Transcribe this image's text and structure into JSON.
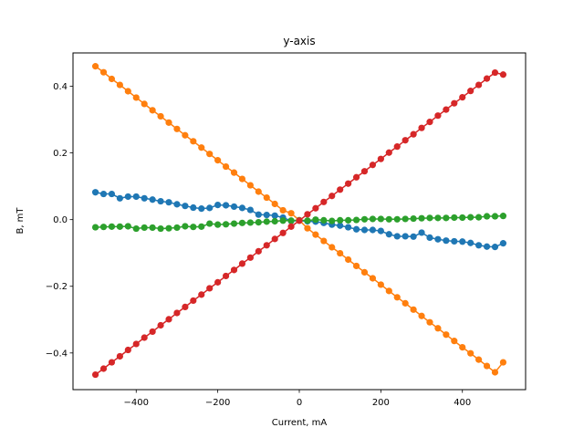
{
  "chart_data": {
    "type": "line",
    "title": "y-axis",
    "xlabel": "Current, mA",
    "ylabel": "B, mT",
    "xlim": [
      -555,
      555
    ],
    "ylim": [
      -0.51,
      0.5
    ],
    "xticks": [
      -400,
      -200,
      0,
      200,
      400
    ],
    "yticks": [
      -0.4,
      -0.2,
      0.0,
      0.2,
      0.4
    ],
    "xtick_labels": [
      "−400",
      "−200",
      "0",
      "200",
      "400"
    ],
    "ytick_labels": [
      "−0.4",
      "−0.2",
      "0.0",
      "0.2",
      "0.4"
    ],
    "grid": false,
    "legend": "none",
    "x": [
      -500,
      -480,
      -460,
      -440,
      -420,
      -400,
      -380,
      -360,
      -340,
      -320,
      -300,
      -280,
      -260,
      -240,
      -220,
      -200,
      -180,
      -160,
      -140,
      -120,
      -100,
      -80,
      -60,
      -40,
      -20,
      0,
      20,
      40,
      60,
      80,
      100,
      120,
      140,
      160,
      180,
      200,
      220,
      240,
      260,
      280,
      300,
      320,
      340,
      360,
      380,
      400,
      420,
      440,
      460,
      480,
      500
    ],
    "series": [
      {
        "color": "#1f77b4",
        "values": [
          0.082,
          0.077,
          0.077,
          0.064,
          0.069,
          0.069,
          0.064,
          0.06,
          0.055,
          0.052,
          0.046,
          0.041,
          0.036,
          0.033,
          0.035,
          0.044,
          0.043,
          0.039,
          0.035,
          0.029,
          0.015,
          0.014,
          0.012,
          0.006,
          -0.004,
          -0.003,
          -0.005,
          -0.006,
          -0.01,
          -0.015,
          -0.018,
          -0.023,
          -0.029,
          -0.031,
          -0.031,
          -0.034,
          -0.044,
          -0.05,
          -0.05,
          -0.051,
          -0.039,
          -0.054,
          -0.059,
          -0.063,
          -0.065,
          -0.066,
          -0.07,
          -0.077,
          -0.081,
          -0.082,
          -0.071
        ]
      },
      {
        "color": "#ff7f0e",
        "values": [
          0.46,
          0.442,
          0.422,
          0.404,
          0.385,
          0.366,
          0.347,
          0.328,
          0.31,
          0.291,
          0.272,
          0.253,
          0.235,
          0.216,
          0.197,
          0.178,
          0.159,
          0.141,
          0.122,
          0.103,
          0.084,
          0.066,
          0.047,
          0.028,
          0.019,
          -0.002,
          -0.026,
          -0.045,
          -0.064,
          -0.083,
          -0.101,
          -0.12,
          -0.139,
          -0.158,
          -0.176,
          -0.195,
          -0.214,
          -0.233,
          -0.251,
          -0.27,
          -0.289,
          -0.308,
          -0.326,
          -0.345,
          -0.364,
          -0.383,
          -0.401,
          -0.42,
          -0.439,
          -0.458,
          -0.428
        ]
      },
      {
        "color": "#2ca02c",
        "values": [
          -0.023,
          -0.022,
          -0.021,
          -0.021,
          -0.02,
          -0.027,
          -0.024,
          -0.024,
          -0.027,
          -0.026,
          -0.024,
          -0.02,
          -0.022,
          -0.021,
          -0.012,
          -0.015,
          -0.014,
          -0.012,
          -0.01,
          -0.009,
          -0.008,
          -0.006,
          -0.005,
          -0.003,
          -0.003,
          -0.002,
          -0.003,
          0.0,
          -0.002,
          -0.004,
          -0.002,
          -0.002,
          -0.001,
          0.001,
          0.002,
          0.002,
          0.001,
          0.001,
          0.002,
          0.003,
          0.004,
          0.005,
          0.005,
          0.005,
          0.006,
          0.006,
          0.007,
          0.007,
          0.01,
          0.01,
          0.011
        ]
      },
      {
        "color": "#d62728",
        "values": [
          -0.465,
          -0.447,
          -0.428,
          -0.41,
          -0.391,
          -0.373,
          -0.354,
          -0.336,
          -0.317,
          -0.299,
          -0.28,
          -0.262,
          -0.243,
          -0.225,
          -0.206,
          -0.188,
          -0.169,
          -0.151,
          -0.132,
          -0.114,
          -0.095,
          -0.077,
          -0.058,
          -0.04,
          -0.021,
          -0.003,
          0.016,
          0.034,
          0.053,
          0.071,
          0.09,
          0.108,
          0.127,
          0.145,
          0.164,
          0.182,
          0.201,
          0.219,
          0.238,
          0.256,
          0.275,
          0.293,
          0.312,
          0.33,
          0.349,
          0.367,
          0.386,
          0.404,
          0.423,
          0.441,
          0.435
        ]
      }
    ]
  }
}
